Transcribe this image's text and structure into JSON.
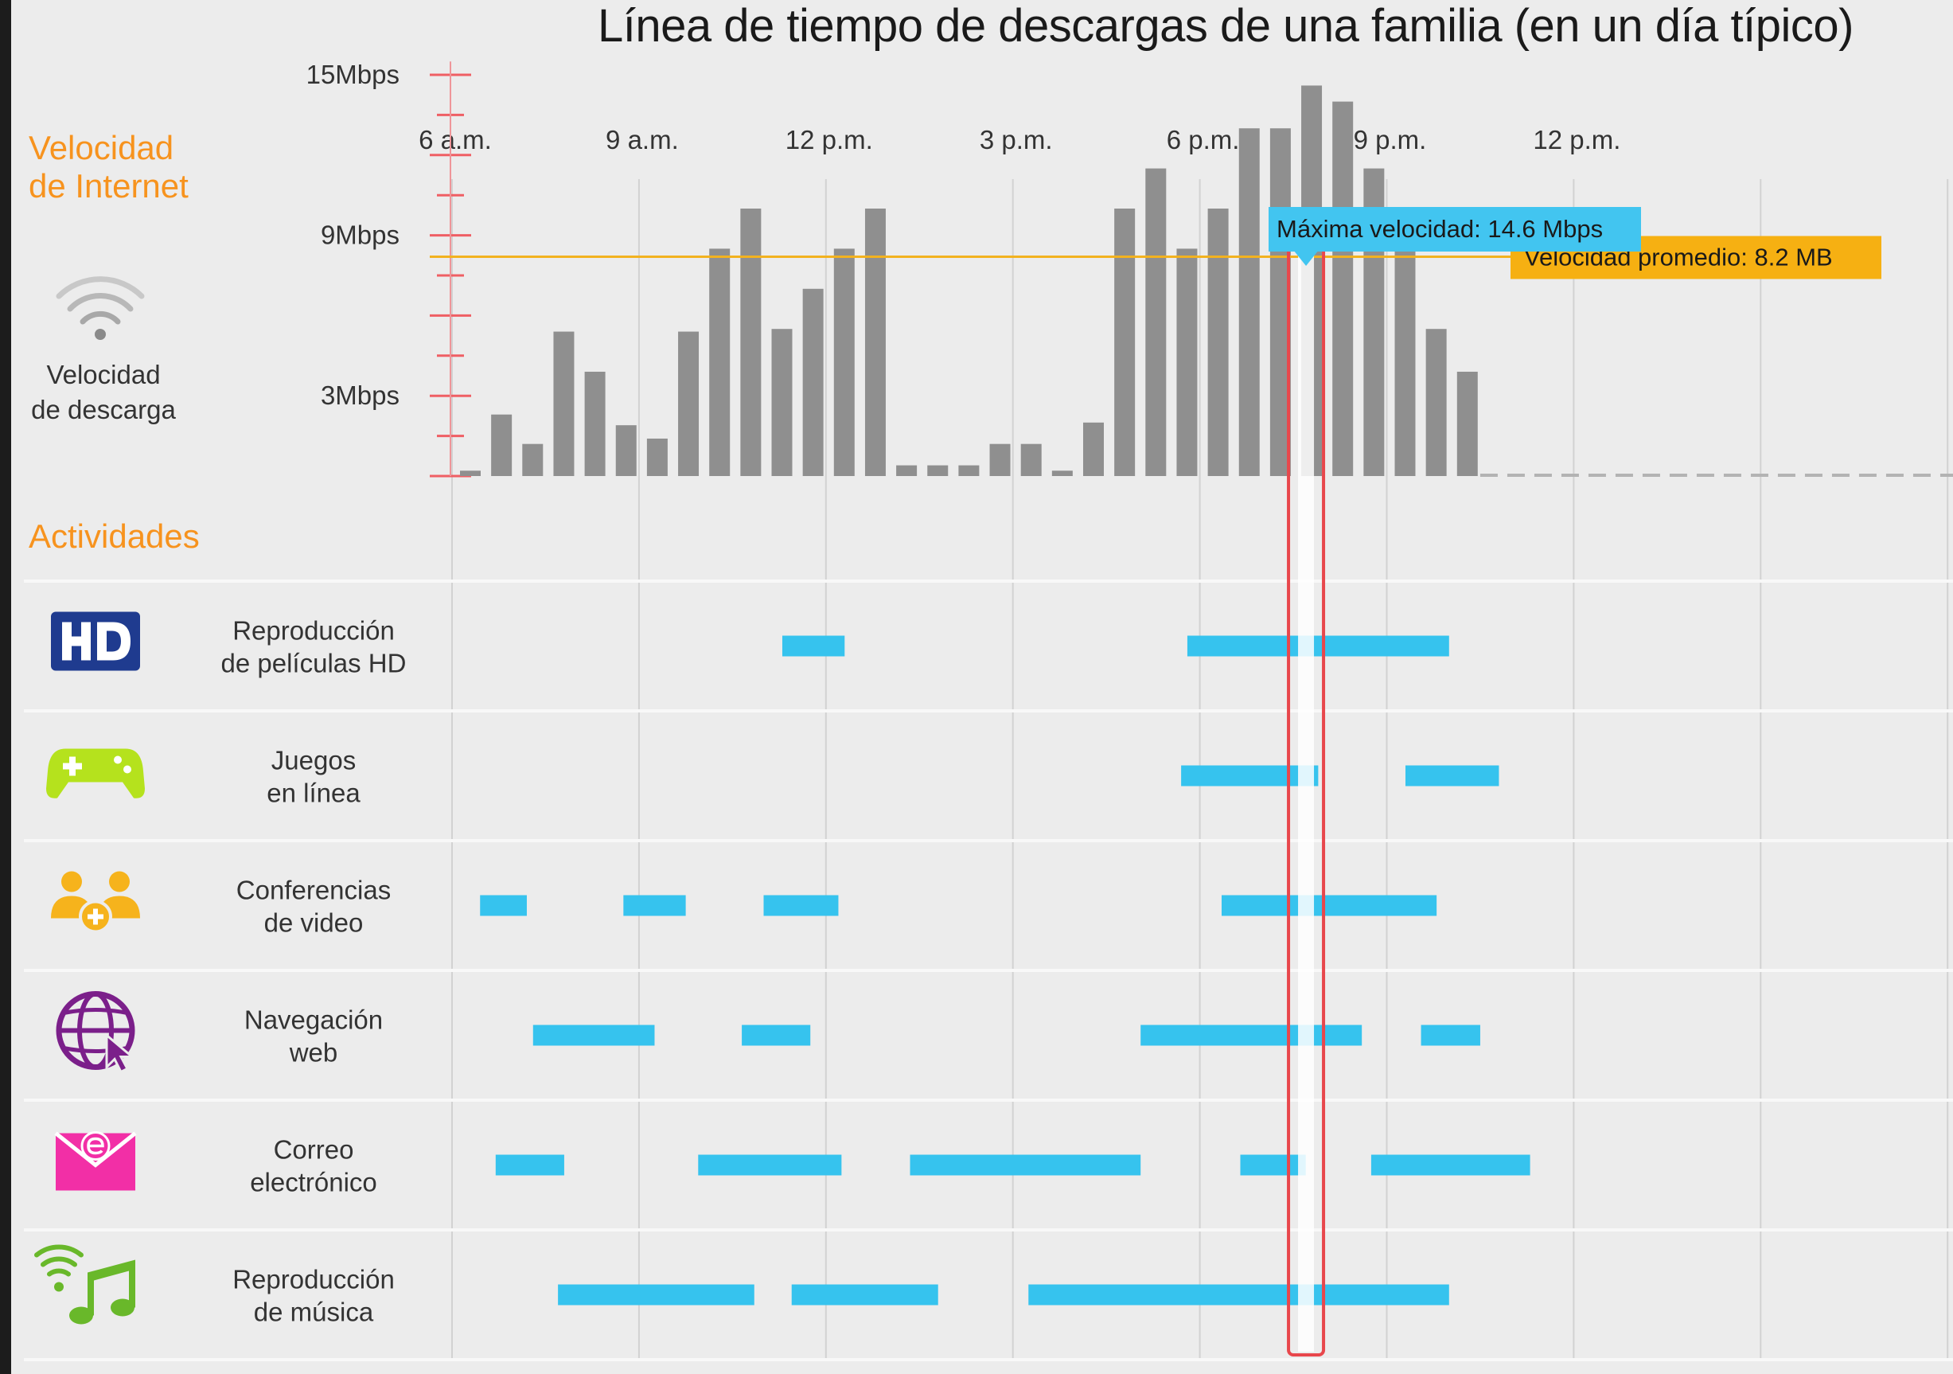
{
  "title": "Línea de tiempo de descargas de una familia (en un día típico)",
  "section_internet": [
    "Velocidad",
    "de Internet"
  ],
  "section_activities": "Actividades",
  "download_label": [
    "Velocidad",
    "de descarga"
  ],
  "colors": {
    "bar": "#8f8f8f",
    "activity": "#36c3ee",
    "average_line": "#f2b21f",
    "average_callout": "#f6b012",
    "max_callout": "#42c5f0",
    "highlight": "#e8474c",
    "section_heading": "#f7931e",
    "hd_icon": "#1f3b8f",
    "gamepad_icon": "#b5e21d",
    "video_icon": "#f6b31c",
    "web_icon": "#7b1f8a",
    "email_icon": "#f22fa6",
    "music_icon": "#69b82a"
  },
  "chart_data": {
    "type": "bar",
    "title": "Línea de tiempo de descargas de una familia (en un día típico)",
    "x_unit": "hours since 6 a.m.",
    "x_range": [
      0,
      24
    ],
    "x_ticks": [
      {
        "h": 0,
        "label": "6 a.m."
      },
      {
        "h": 3,
        "label": "9 a.m."
      },
      {
        "h": 6,
        "label": "12 p.m."
      },
      {
        "h": 9,
        "label": "3 p.m."
      },
      {
        "h": 12,
        "label": "6 p.m."
      },
      {
        "h": 15,
        "label": "9 p.m."
      },
      {
        "h": 18,
        "label": "12 p.m."
      }
    ],
    "y_ticks": [
      {
        "value": 3,
        "label": "3Mbps"
      },
      {
        "value": 9,
        "label": "9Mbps"
      },
      {
        "value": 15,
        "label": "15Mbps"
      }
    ],
    "ylim": [
      0,
      15.5
    ],
    "bar_interval_hours": 0.5,
    "values": [
      0.2,
      2.3,
      1.2,
      5.4,
      3.9,
      1.9,
      1.4,
      5.4,
      8.5,
      10.0,
      5.5,
      7.0,
      8.5,
      10.0,
      0.4,
      0.4,
      0.4,
      1.2,
      1.2,
      0.2,
      2.0,
      10.0,
      11.5,
      8.5,
      10.0,
      13.0,
      13.0,
      14.6,
      14.0,
      11.5,
      8.5,
      5.5,
      3.9
    ],
    "average": {
      "value": 8.2,
      "label": "Velocidad promedio: 8.2 MB"
    },
    "maximum": {
      "value": 14.6,
      "hour": 13.5,
      "label": "Máxima velocidad: 14.6 Mbps"
    },
    "activities": [
      {
        "name": "Reproducción de películas HD",
        "lines": [
          "Reproducción",
          "de películas HD"
        ],
        "icon": "hd-icon",
        "segments": [
          [
            5.3,
            6.3
          ],
          [
            11.8,
            16.0
          ]
        ]
      },
      {
        "name": "Juegos en línea",
        "lines": [
          "Juegos",
          "en línea"
        ],
        "icon": "gamepad-icon",
        "segments": [
          [
            11.7,
            13.9
          ],
          [
            15.3,
            16.8
          ]
        ]
      },
      {
        "name": "Conferencias de video",
        "lines": [
          "Conferencias",
          "de video"
        ],
        "icon": "video-conference-icon",
        "segments": [
          [
            0.45,
            1.2
          ],
          [
            2.75,
            3.75
          ],
          [
            5.0,
            6.2
          ],
          [
            12.35,
            15.8
          ]
        ]
      },
      {
        "name": "Navegación web",
        "lines": [
          "Navegación",
          "web"
        ],
        "icon": "globe-cursor-icon",
        "segments": [
          [
            1.3,
            3.25
          ],
          [
            4.65,
            5.75
          ],
          [
            11.05,
            14.6
          ],
          [
            15.55,
            16.5
          ]
        ]
      },
      {
        "name": "Correo electrónico",
        "lines": [
          "Correo",
          "electrónico"
        ],
        "icon": "email-icon",
        "segments": [
          [
            0.7,
            1.8
          ],
          [
            3.95,
            6.25
          ],
          [
            7.35,
            11.05
          ],
          [
            12.65,
            13.7
          ],
          [
            14.75,
            17.3
          ]
        ]
      },
      {
        "name": "Reproducción de música",
        "lines": [
          "Reproducción",
          "de música"
        ],
        "icon": "music-wifi-icon",
        "segments": [
          [
            1.7,
            4.85
          ],
          [
            5.45,
            7.8
          ],
          [
            9.25,
            16.0
          ]
        ]
      }
    ]
  }
}
